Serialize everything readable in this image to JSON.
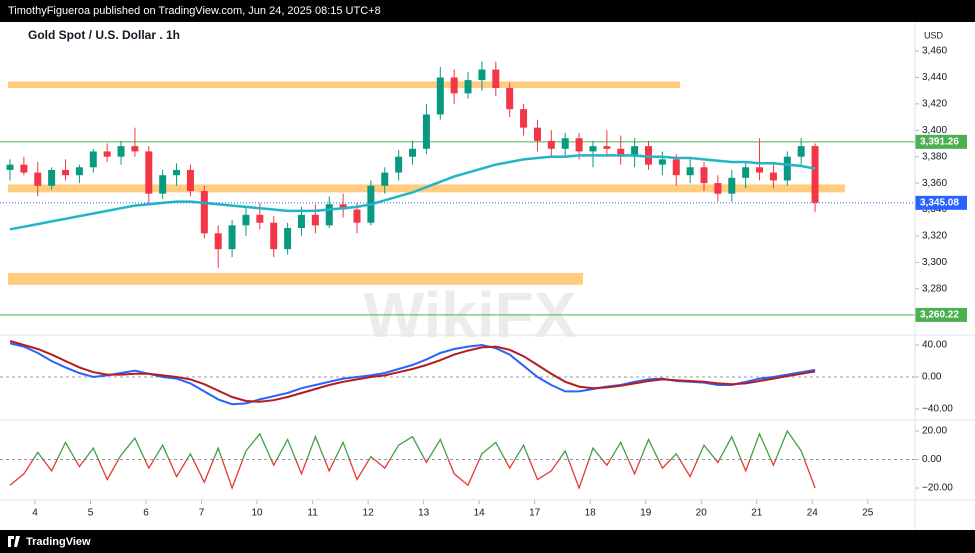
{
  "header": {
    "text": "TimothyFigueroa published on TradingView.com, Jun 24, 2025 08:15 UTC+8"
  },
  "footer": {
    "brand": "TradingView"
  },
  "chart_data": [
    {
      "type": "candlestick",
      "title": "Gold Spot / U.S. Dollar . 1h",
      "currency_label": "USD",
      "watermark": "WikiFX",
      "up_color": "#089981",
      "down_color": "#f23645",
      "ohlc": [
        [
          3370,
          3378,
          3362,
          3374
        ],
        [
          3374,
          3380,
          3366,
          3368
        ],
        [
          3368,
          3376,
          3350,
          3358
        ],
        [
          3358,
          3372,
          3355,
          3370
        ],
        [
          3370,
          3378,
          3362,
          3366
        ],
        [
          3366,
          3374,
          3360,
          3372
        ],
        [
          3372,
          3386,
          3368,
          3384
        ],
        [
          3384,
          3390,
          3376,
          3380
        ],
        [
          3380,
          3392,
          3374,
          3388
        ],
        [
          3388,
          3402,
          3380,
          3384
        ],
        [
          3384,
          3388,
          3344,
          3352
        ],
        [
          3352,
          3370,
          3348,
          3366
        ],
        [
          3366,
          3375,
          3358,
          3370
        ],
        [
          3370,
          3374,
          3350,
          3354
        ],
        [
          3354,
          3358,
          3318,
          3322
        ],
        [
          3322,
          3328,
          3296,
          3310
        ],
        [
          3310,
          3332,
          3304,
          3328
        ],
        [
          3328,
          3342,
          3320,
          3336
        ],
        [
          3336,
          3345,
          3325,
          3330
        ],
        [
          3330,
          3335,
          3304,
          3310
        ],
        [
          3310,
          3330,
          3306,
          3326
        ],
        [
          3326,
          3342,
          3320,
          3336
        ],
        [
          3336,
          3344,
          3322,
          3328
        ],
        [
          3328,
          3350,
          3326,
          3344
        ],
        [
          3344,
          3352,
          3334,
          3340
        ],
        [
          3340,
          3345,
          3322,
          3330
        ],
        [
          3330,
          3362,
          3328,
          3358
        ],
        [
          3358,
          3372,
          3352,
          3368
        ],
        [
          3368,
          3385,
          3362,
          3380
        ],
        [
          3380,
          3392,
          3374,
          3386
        ],
        [
          3386,
          3420,
          3382,
          3412
        ],
        [
          3412,
          3448,
          3408,
          3440
        ],
        [
          3440,
          3446,
          3420,
          3428
        ],
        [
          3428,
          3444,
          3424,
          3438
        ],
        [
          3438,
          3452,
          3430,
          3446
        ],
        [
          3446,
          3452,
          3426,
          3432
        ],
        [
          3432,
          3436,
          3410,
          3416
        ],
        [
          3416,
          3420,
          3396,
          3402
        ],
        [
          3402,
          3408,
          3384,
          3392
        ],
        [
          3392,
          3400,
          3380,
          3386
        ],
        [
          3386,
          3398,
          3380,
          3394
        ],
        [
          3394,
          3398,
          3378,
          3384
        ],
        [
          3384,
          3392,
          3372,
          3388
        ],
        [
          3388,
          3400,
          3380,
          3386
        ],
        [
          3386,
          3396,
          3374,
          3380
        ],
        [
          3380,
          3394,
          3372,
          3388
        ],
        [
          3388,
          3392,
          3370,
          3374
        ],
        [
          3374,
          3384,
          3366,
          3378
        ],
        [
          3378,
          3382,
          3358,
          3366
        ],
        [
          3366,
          3378,
          3360,
          3372
        ],
        [
          3372,
          3376,
          3354,
          3360
        ],
        [
          3360,
          3366,
          3346,
          3352
        ],
        [
          3352,
          3370,
          3346,
          3364
        ],
        [
          3364,
          3376,
          3356,
          3372
        ],
        [
          3372,
          3394,
          3362,
          3368
        ],
        [
          3368,
          3376,
          3356,
          3362
        ],
        [
          3362,
          3384,
          3358,
          3380
        ],
        [
          3380,
          3394,
          3374,
          3388
        ],
        [
          3388,
          3390,
          3338,
          3345.08
        ]
      ],
      "moving_average": {
        "color": "#22b5c6",
        "values": [
          3325,
          3327,
          3329,
          3331,
          3333,
          3335,
          3337,
          3339,
          3341,
          3343,
          3344,
          3345,
          3346,
          3346,
          3345,
          3344,
          3343,
          3342,
          3341,
          3340,
          3339,
          3339,
          3339,
          3340,
          3341,
          3342,
          3344,
          3347,
          3350,
          3353,
          3357,
          3361,
          3365,
          3368,
          3371,
          3374,
          3376,
          3378,
          3379,
          3380,
          3380,
          3381,
          3381,
          3381,
          3381,
          3381,
          3380,
          3380,
          3379,
          3379,
          3378,
          3377,
          3376,
          3376,
          3375,
          3375,
          3374,
          3373,
          3371
        ]
      },
      "zone_color": "#ffcc80",
      "zones": [
        [
          3432,
          3437
        ],
        [
          3353,
          3359
        ],
        [
          3283,
          3292
        ]
      ],
      "level_color": "#4caf50",
      "levels": [
        {
          "value": 3391.26,
          "label": "3,391.26"
        },
        {
          "value": 3260.22,
          "label": "3,260.22"
        }
      ],
      "last_price": {
        "value": 3345.08,
        "label": "3,345.08",
        "color": "#2962ff"
      },
      "xlim": [
        -0.72,
        65.2
      ],
      "xticks": [
        {
          "value": 1.8,
          "label": "4"
        },
        {
          "value": 5.8,
          "label": "5"
        },
        {
          "value": 9.8,
          "label": "6"
        },
        {
          "value": 13.8,
          "label": "7"
        },
        {
          "value": 17.8,
          "label": "10"
        },
        {
          "value": 21.8,
          "label": "11"
        },
        {
          "value": 25.8,
          "label": "12"
        },
        {
          "value": 29.8,
          "label": "13"
        },
        {
          "value": 33.8,
          "label": "14"
        },
        {
          "value": 37.8,
          "label": "17"
        },
        {
          "value": 41.8,
          "label": "18"
        },
        {
          "value": 45.8,
          "label": "19"
        },
        {
          "value": 49.8,
          "label": "20"
        },
        {
          "value": 53.8,
          "label": "21"
        },
        {
          "value": 57.8,
          "label": "24"
        },
        {
          "value": 61.8,
          "label": "25"
        }
      ],
      "ylim": [
        3245,
        3482
      ],
      "yticks": [
        {
          "value": 3280,
          "label": "3,280"
        },
        {
          "value": 3300,
          "label": "3,300"
        },
        {
          "value": 3320,
          "label": "3,320"
        },
        {
          "value": 3340,
          "label": "3,340"
        },
        {
          "value": 3360,
          "label": "3,360"
        },
        {
          "value": 3380,
          "label": "3,380"
        },
        {
          "value": 3400,
          "label": "3,400"
        },
        {
          "value": 3420,
          "label": "3,420"
        },
        {
          "value": 3440,
          "label": "3,440"
        },
        {
          "value": 3460,
          "label": "3,460"
        }
      ]
    },
    {
      "type": "line",
      "series": [
        {
          "color": "#2962ff",
          "values": [
            42,
            38,
            30,
            20,
            12,
            5,
            0,
            2,
            5,
            8,
            4,
            0,
            -2,
            -8,
            -18,
            -28,
            -34,
            -33,
            -28,
            -24,
            -20,
            -14,
            -10,
            -6,
            -2,
            0,
            2,
            5,
            10,
            15,
            22,
            30,
            35,
            38,
            40,
            36,
            28,
            14,
            0,
            -10,
            -18,
            -18,
            -15,
            -12,
            -10,
            -6,
            -3,
            -2,
            -5,
            -6,
            -7,
            -10,
            -10,
            -6,
            -2,
            0,
            3,
            6,
            9
          ]
        },
        {
          "color": "#b71c1c",
          "values": [
            45,
            40,
            35,
            28,
            20,
            12,
            6,
            3,
            3,
            4,
            4,
            2,
            0,
            -3,
            -9,
            -17,
            -25,
            -30,
            -31,
            -29,
            -25,
            -20,
            -15,
            -10,
            -6,
            -3,
            0,
            2,
            6,
            10,
            15,
            21,
            28,
            33,
            37,
            38,
            34,
            26,
            15,
            4,
            -6,
            -12,
            -14,
            -13,
            -11,
            -8,
            -5,
            -3,
            -4,
            -5,
            -6,
            -8,
            -9,
            -8,
            -5,
            -2,
            1,
            4,
            7
          ]
        }
      ],
      "ylim": [
        -53.75,
        52.5
      ],
      "yticks": [
        {
          "value": -40,
          "label": "−40.00"
        },
        {
          "value": 0,
          "label": "0.00"
        },
        {
          "value": 40,
          "label": "40.00"
        }
      ]
    },
    {
      "type": "line",
      "above_color": "#43a047",
      "below_color": "#e53935",
      "series": [
        {
          "values": [
            -18,
            -10,
            5,
            -8,
            12,
            -5,
            8,
            -14,
            3,
            15,
            -6,
            10,
            -12,
            4,
            -16,
            8,
            -20,
            6,
            18,
            -4,
            14,
            -10,
            16,
            -8,
            12,
            -14,
            2,
            -6,
            10,
            16,
            -2,
            14,
            -10,
            -18,
            4,
            12,
            -6,
            10,
            -14,
            -8,
            6,
            -20,
            8,
            -4,
            12,
            -10,
            14,
            -6,
            4,
            -12,
            10,
            -2,
            16,
            -8,
            18,
            -4,
            20,
            6,
            -20
          ]
        }
      ],
      "ylim": [
        -28.4,
        27.7
      ],
      "yticks": [
        {
          "value": -20,
          "label": "−20.00"
        },
        {
          "value": 0,
          "label": "0.00"
        },
        {
          "value": 20,
          "label": "20.00"
        }
      ]
    }
  ]
}
